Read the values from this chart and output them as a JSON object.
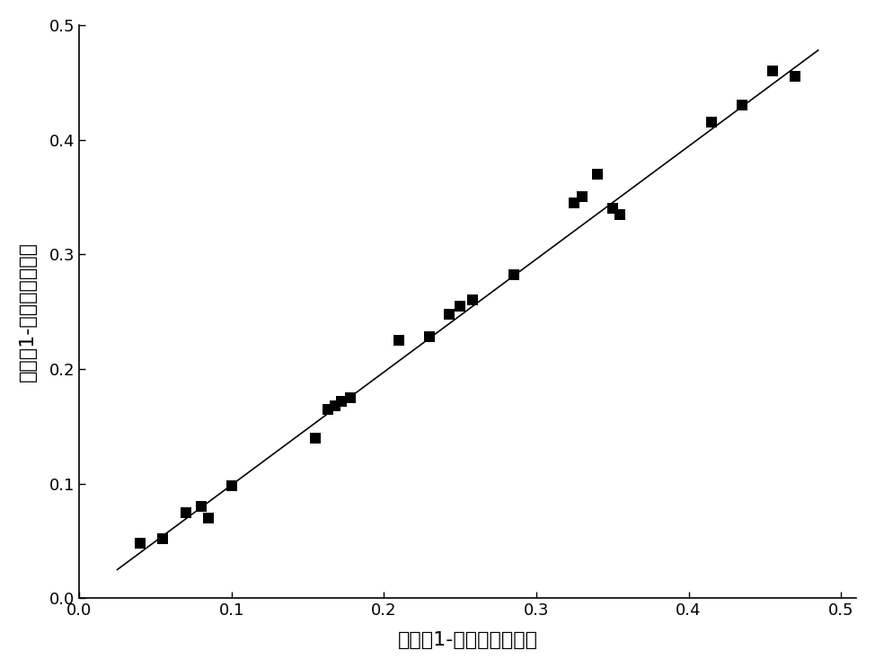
{
  "x_data": [
    0.04,
    0.055,
    0.07,
    0.08,
    0.085,
    0.1,
    0.155,
    0.163,
    0.168,
    0.172,
    0.178,
    0.21,
    0.23,
    0.243,
    0.25,
    0.258,
    0.285,
    0.325,
    0.33,
    0.34,
    0.35,
    0.355,
    0.415,
    0.435,
    0.455,
    0.47
  ],
  "y_data": [
    0.048,
    0.052,
    0.075,
    0.08,
    0.07,
    0.098,
    0.14,
    0.165,
    0.168,
    0.172,
    0.175,
    0.225,
    0.228,
    0.248,
    0.255,
    0.26,
    0.282,
    0.345,
    0.35,
    0.37,
    0.34,
    0.335,
    0.415,
    0.43,
    0.46,
    0.455
  ],
  "line_x": [
    0.025,
    0.485
  ],
  "line_y": [
    0.025,
    0.478
  ],
  "xlabel": "实测倃1-轴向最大压缩率",
  "ylabel": "模型倃1-轴向最大压缩率",
  "xlim": [
    0.0,
    0.51
  ],
  "ylim": [
    0.0,
    0.5
  ],
  "xticks": [
    0.0,
    0.1,
    0.2,
    0.3,
    0.4,
    0.5
  ],
  "yticks": [
    0.0,
    0.1,
    0.2,
    0.3,
    0.4,
    0.5
  ],
  "marker_color": "#000000",
  "line_color": "#000000",
  "marker_size": 8,
  "marker_style": "s",
  "background_color": "#ffffff",
  "xlabel_fontsize": 16,
  "ylabel_fontsize": 16,
  "tick_fontsize": 13,
  "line_width": 1.2
}
